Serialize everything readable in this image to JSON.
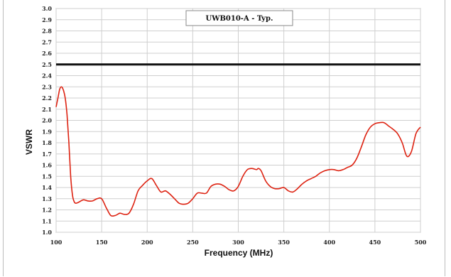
{
  "chart_data": {
    "type": "line",
    "title": "UWB010-A - Typ.",
    "xlabel": "Frequency (MHz)",
    "ylabel": "VSWR",
    "xlim": [
      100,
      500
    ],
    "ylim": [
      1.0,
      3.0
    ],
    "x_ticks": [
      "100",
      "150",
      "200",
      "250",
      "300",
      "350",
      "400",
      "450",
      "500"
    ],
    "y_ticks": [
      "1.0",
      "1.1",
      "1.2",
      "1.3",
      "1.4",
      "1.5",
      "1.6",
      "1.7",
      "1.8",
      "1.9",
      "2.0",
      "2.1",
      "2.2",
      "2.3",
      "2.4",
      "2.5",
      "2.6",
      "2.7",
      "2.8",
      "2.9",
      "3.0"
    ],
    "grid": true,
    "reference_line": {
      "y": 2.5,
      "color": "#111111"
    },
    "series": [
      {
        "color": "#dd2211",
        "x": [
          100,
          102,
          104,
          106,
          108,
          110,
          112,
          114,
          116,
          118,
          120,
          122,
          125,
          130,
          135,
          140,
          145,
          150,
          155,
          160,
          165,
          170,
          175,
          180,
          185,
          190,
          195,
          200,
          205,
          210,
          215,
          220,
          225,
          230,
          235,
          240,
          245,
          250,
          255,
          260,
          265,
          270,
          275,
          280,
          285,
          290,
          295,
          300,
          305,
          310,
          315,
          320,
          322,
          325,
          330,
          335,
          340,
          345,
          350,
          355,
          360,
          365,
          370,
          375,
          380,
          385,
          390,
          395,
          400,
          405,
          410,
          415,
          420,
          425,
          430,
          435,
          440,
          445,
          450,
          455,
          460,
          465,
          470,
          475,
          480,
          485,
          490,
          495,
          500
        ],
        "y": [
          2.12,
          2.2,
          2.28,
          2.3,
          2.27,
          2.2,
          2.05,
          1.8,
          1.5,
          1.33,
          1.27,
          1.26,
          1.27,
          1.29,
          1.28,
          1.28,
          1.3,
          1.3,
          1.22,
          1.15,
          1.15,
          1.17,
          1.16,
          1.17,
          1.25,
          1.37,
          1.42,
          1.46,
          1.48,
          1.42,
          1.36,
          1.37,
          1.34,
          1.3,
          1.26,
          1.25,
          1.26,
          1.3,
          1.35,
          1.35,
          1.35,
          1.41,
          1.43,
          1.43,
          1.41,
          1.38,
          1.37,
          1.41,
          1.5,
          1.56,
          1.57,
          1.56,
          1.57,
          1.55,
          1.46,
          1.41,
          1.39,
          1.39,
          1.4,
          1.37,
          1.36,
          1.39,
          1.43,
          1.46,
          1.48,
          1.5,
          1.53,
          1.55,
          1.56,
          1.56,
          1.55,
          1.56,
          1.58,
          1.6,
          1.66,
          1.76,
          1.87,
          1.94,
          1.97,
          1.98,
          1.98,
          1.95,
          1.92,
          1.88,
          1.8,
          1.68,
          1.72,
          1.88,
          1.94
        ]
      }
    ]
  }
}
